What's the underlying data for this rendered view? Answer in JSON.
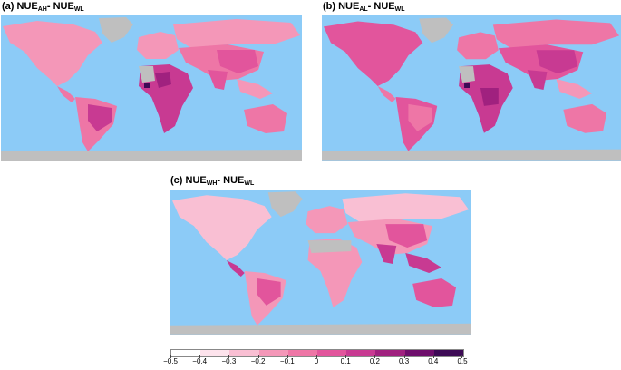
{
  "panels": [
    {
      "id": "a",
      "prefix": "(a) NUE",
      "sub1": "AH",
      "mid": "- NUE",
      "sub2": "WL"
    },
    {
      "id": "b",
      "prefix": "(b) NUE",
      "sub1": "AL",
      "mid": "- NUE",
      "sub2": "WL"
    },
    {
      "id": "c",
      "prefix": "(c) NUE",
      "sub1": "WH",
      "mid": "- NUE",
      "sub2": "WL"
    }
  ],
  "colors": {
    "ocean": "#8ccbf7",
    "nodata": "#bfbfbf",
    "scale": [
      "#ffffff",
      "#fde3ec",
      "#f9bfd3",
      "#f497b8",
      "#ee76a6",
      "#e2559c",
      "#c83a92",
      "#a0217f",
      "#6e0e6c",
      "#3d0a55"
    ]
  },
  "legend": {
    "ticks": [
      "−0.5",
      "−0.4",
      "−0.3",
      "−0.2",
      "−0.1",
      "0",
      "0.1",
      "0.2",
      "0.3",
      "0.4",
      "0.5"
    ]
  }
}
